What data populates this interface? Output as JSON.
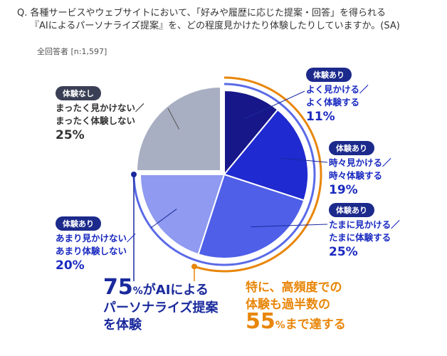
{
  "chart_data": {
    "type": "pie",
    "title": "Q. 各種サービスやウェブサイトにおいて、「好みや履歴に応じた提案・回答」を得られる\n『AIによるパーソナライズ提案』を、どの程度見かけたり体験したりしていますか。(SA)",
    "subtitle": "全回答者 [n:1,597]",
    "categories": [
      "よく見かける／\nよく体験する",
      "時々見かける／\n時々体験する",
      "たまに見かける／\nたまに体験する",
      "あまり見かけない／\nあまり体験しない",
      "まったく見かけない／\nまったく体験しない"
    ],
    "tags": [
      "体験あり",
      "体験あり",
      "体験あり",
      "体験あり",
      "体験なし"
    ],
    "values": [
      11,
      19,
      25,
      20,
      25
    ],
    "value_labels": [
      "11%",
      "19%",
      "25%",
      "20%",
      "25%"
    ],
    "colors": [
      "#17178a",
      "#1f2ad0",
      "#4f5fe8",
      "#8f9af0",
      "#a9afc2"
    ],
    "annotations": [
      [
        "75",
        "%",
        "がAIによる",
        "パーソナライズ提案\nを体験"
      ],
      [
        "特に、高頻度での\n体験も過半数の",
        "55",
        "%",
        "まで達する"
      ]
    ]
  }
}
